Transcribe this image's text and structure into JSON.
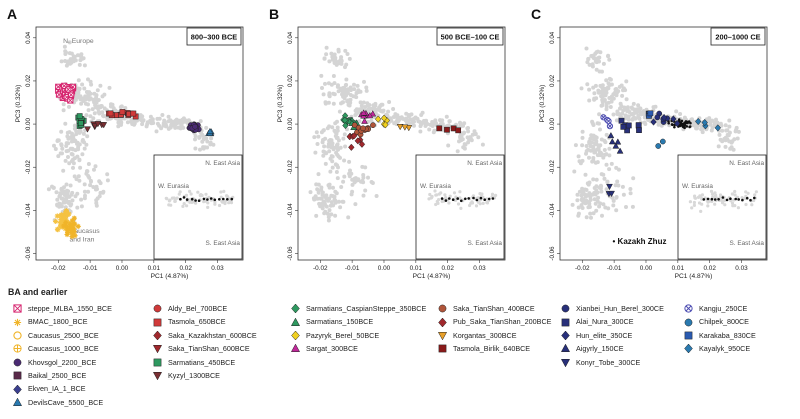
{
  "chart_data": [
    {
      "type": "scatter",
      "panel_letter": "A",
      "period_label": "800–300 BCE",
      "xlabel": "PC1 (4.87%)",
      "ylabel": "PC3 (0.32%)",
      "xlim": [
        -0.027,
        0.038
      ],
      "ylim": [
        -0.063,
        0.045
      ],
      "xticks": [
        -0.02,
        -0.01,
        0.0,
        0.01,
        0.02,
        0.03
      ],
      "xtick_labels": [
        "-0.02",
        "-0.01",
        "0.00",
        "0.01",
        "0.02",
        "0.03"
      ],
      "yticks": [
        0.04,
        0.02,
        0.0,
        -0.02,
        -0.04,
        -0.06
      ],
      "ytick_labels": [
        "0.04",
        "0.02",
        "0.00",
        "-0.02",
        "-0.04",
        "-0.06"
      ],
      "annotations": [
        {
          "text": "N. Europe",
          "x": -0.0185,
          "y": 0.0375
        },
        {
          "text": "Caucasus",
          "x": -0.0165,
          "y": -0.0505
        },
        {
          "text": "and Iran",
          "x": -0.0165,
          "y": -0.0545
        }
      ],
      "inset_annotations": [
        "N. East Asia",
        "W. Eurasia",
        "S. East Asia"
      ],
      "background_points": "grey reference cloud (present-day Eurasians)",
      "clusters": [
        {
          "name": "steppe_MLBA_1550_BCE",
          "cx": -0.0175,
          "cy": 0.015,
          "sx": 0.0022,
          "sy": 0.003,
          "n": 45
        },
        {
          "name": "BMAC_1800_BCE",
          "cx": -0.0185,
          "cy": -0.044,
          "sx": 0.002,
          "sy": 0.005,
          "n": 40
        },
        {
          "name": "Caucasus_2500_BCE",
          "cx": -0.016,
          "cy": -0.048,
          "sx": 0.002,
          "sy": 0.004,
          "n": 25
        },
        {
          "name": "Sarmatians_450BCE",
          "cx": -0.013,
          "cy": 0.0015,
          "sx": 0.0013,
          "sy": 0.003,
          "n": 14
        },
        {
          "name": "Kyzyl_1300BCE",
          "cx": -0.008,
          "cy": -0.001,
          "sx": 0.003,
          "sy": 0.0012,
          "n": 7
        },
        {
          "name": "Tasmola_650BCE",
          "cx": 0.0005,
          "cy": 0.0045,
          "sx": 0.005,
          "sy": 0.0008,
          "n": 12
        },
        {
          "name": "Khovsgol_2200_BCE",
          "cx": 0.0225,
          "cy": -0.0015,
          "sx": 0.0018,
          "sy": 0.002,
          "n": 18
        },
        {
          "name": "DevilsCave_5500_BCE",
          "cx": 0.0278,
          "cy": -0.004,
          "sx": 0.0006,
          "sy": 0.001,
          "n": 5
        }
      ]
    },
    {
      "type": "scatter",
      "panel_letter": "B",
      "period_label": "500 BCE–100 CE",
      "xlabel": "PC1 (4.87%)",
      "ylabel": "PC3 (0.32%)",
      "xlim": [
        -0.027,
        0.038
      ],
      "ylim": [
        -0.063,
        0.045
      ],
      "xticks": [
        -0.02,
        -0.01,
        0.0,
        0.01,
        0.02,
        0.03
      ],
      "xtick_labels": [
        "-0.02",
        "-0.01",
        "0.00",
        "0.01",
        "0.02",
        "0.03"
      ],
      "yticks": [
        0.04,
        0.02,
        0.0,
        -0.02,
        -0.04,
        -0.06
      ],
      "ytick_labels": [
        "0.04",
        "0.02",
        "0.00",
        "-0.02",
        "-0.04",
        "-0.06"
      ],
      "inset_annotations": [
        "N. East Asia",
        "W. Eurasia",
        "S. East Asia"
      ],
      "clusters": [
        {
          "name": "Sarmatians_CaspianSteppe_350BCE",
          "cx": -0.012,
          "cy": 0.002,
          "sx": 0.0015,
          "sy": 0.002,
          "n": 10
        },
        {
          "name": "Sarmatians_150BCE",
          "cx": -0.01,
          "cy": 0.0,
          "sx": 0.0015,
          "sy": 0.002,
          "n": 6
        },
        {
          "name": "Saka_TianShan_400BCE",
          "cx": -0.007,
          "cy": -0.003,
          "sx": 0.003,
          "sy": 0.004,
          "n": 12
        },
        {
          "name": "Pazyryk_Berel_50BCE",
          "cx": 0.0,
          "cy": 0.001,
          "sx": 0.002,
          "sy": 0.002,
          "n": 5
        },
        {
          "name": "Sargat_300BCE",
          "cx": -0.005,
          "cy": 0.004,
          "sx": 0.002,
          "sy": 0.002,
          "n": 8
        },
        {
          "name": "Pub_Saka_TianShan_200BCE",
          "cx": -0.009,
          "cy": -0.006,
          "sx": 0.003,
          "sy": 0.003,
          "n": 8
        },
        {
          "name": "Korgantas_300BCE",
          "cx": 0.008,
          "cy": -0.002,
          "sx": 0.003,
          "sy": 0.001,
          "n": 3
        },
        {
          "name": "Tasmola_Birlik_640BCE",
          "cx": 0.02,
          "cy": -0.002,
          "sx": 0.004,
          "sy": 0.0008,
          "n": 4
        }
      ]
    },
    {
      "type": "scatter",
      "panel_letter": "C",
      "period_label": "200–1000 CE",
      "xlabel": "PC1 (4.87%)",
      "ylabel": "PC3 (0.32%)",
      "xlim": [
        -0.027,
        0.038
      ],
      "ylim": [
        -0.063,
        0.045
      ],
      "xticks": [
        -0.02,
        -0.01,
        0.0,
        0.01,
        0.02,
        0.03
      ],
      "xtick_labels": [
        "-0.02",
        "-0.01",
        "0.00",
        "0.01",
        "0.02",
        "0.03"
      ],
      "yticks": [
        0.04,
        0.02,
        0.0,
        -0.02,
        -0.04,
        -0.06
      ],
      "ytick_labels": [
        "0.04",
        "0.02",
        "0.00",
        "-0.02",
        "-0.04",
        "-0.06"
      ],
      "annotations": [
        {
          "text": "• Kazakh Zhuz",
          "x": -0.0105,
          "y": -0.0555
        }
      ],
      "inset_annotations": [
        "N. East Asia",
        "W. Eurasia",
        "S. East Asia"
      ],
      "clusters": [
        {
          "name": "Kazakh_dots",
          "cx": 0.011,
          "cy": 0.0,
          "sx": 0.003,
          "sy": 0.002,
          "n": 40
        },
        {
          "name": "Xianbei_Hun_Berel_300CE",
          "cx": 0.006,
          "cy": 0.003,
          "sx": 0.004,
          "sy": 0.002,
          "n": 5
        },
        {
          "name": "Alai_Nura_300CE",
          "cx": -0.005,
          "cy": 0.0,
          "sx": 0.005,
          "sy": 0.004,
          "n": 8
        },
        {
          "name": "Hun_elite_350CE",
          "cx": 0.005,
          "cy": 0.001,
          "sx": 0.006,
          "sy": 0.003,
          "n": 4
        },
        {
          "name": "Aigyrly_150CE",
          "cx": -0.009,
          "cy": -0.008,
          "sx": 0.004,
          "sy": 0.003,
          "n": 5
        },
        {
          "name": "Konyr_Tobe_300CE",
          "cx": -0.012,
          "cy": -0.028,
          "sx": 0.003,
          "sy": 0.006,
          "n": 3
        },
        {
          "name": "Kangju_250CE",
          "cx": -0.013,
          "cy": 0.002,
          "sx": 0.002,
          "sy": 0.003,
          "n": 4
        },
        {
          "name": "Chilpek_800CE",
          "cx": 0.005,
          "cy": -0.009,
          "sx": 0.002,
          "sy": 0.002,
          "n": 2
        },
        {
          "name": "Karakaba_830CE",
          "cx": 0.001,
          "cy": 0.004,
          "sx": 0.002,
          "sy": 0.002,
          "n": 4
        },
        {
          "name": "Kayalyk_950CE",
          "cx": 0.02,
          "cy": 0.0,
          "sx": 0.004,
          "sy": 0.002,
          "n": 4
        }
      ]
    }
  ],
  "legend": {
    "heading": "BA and earlier",
    "columns": [
      [
        {
          "label": "steppe_MLBA_1550_BCE",
          "shape": "square-x",
          "color": "#d6246e"
        },
        {
          "label": "BMAC_1800_BCE",
          "shape": "asterisk",
          "color": "#f0b429"
        },
        {
          "label": "Caucasus_2500_BCE",
          "shape": "circle-open",
          "color": "#f0b429"
        },
        {
          "label": "Caucasus_1000_BCE",
          "shape": "circle-plus",
          "color": "#f0b429"
        },
        {
          "label": "Khovsgol_2200_BCE",
          "shape": "circle",
          "color": "#4a2a73"
        },
        {
          "label": "Baikal_2500_BCE",
          "shape": "square",
          "color": "#5a2a4a"
        },
        {
          "label": "Ekven_IA_1_BCE",
          "shape": "diamond",
          "color": "#3a3f8f"
        },
        {
          "label": "DevilsCave_5500_BCE",
          "shape": "triangle",
          "color": "#2a7ab0"
        }
      ],
      [
        {
          "label": "Aldy_Bel_700BCE",
          "shape": "circle",
          "color": "#d03a3a"
        },
        {
          "label": "Tasmola_650BCE",
          "shape": "square",
          "color": "#d03a3a"
        },
        {
          "label": "Saka_Kazakhstan_600BCE",
          "shape": "diamond",
          "color": "#a0282d"
        },
        {
          "label": "Saka_TianShan_600BCE",
          "shape": "triangle-down",
          "color": "#a0282d"
        },
        {
          "label": "Sarmatians_450BCE",
          "shape": "square",
          "color": "#2e9960"
        },
        {
          "label": "Kyzyl_1300BCE",
          "shape": "triangle-down",
          "color": "#7a2f33"
        }
      ],
      [
        {
          "label": "Sarmatians_CaspianSteppe_350BCE",
          "shape": "diamond",
          "color": "#2e9960"
        },
        {
          "label": "Sarmatians_150BCE",
          "shape": "triangle",
          "color": "#2e9960"
        },
        {
          "label": "Pazyryk_Berel_50BCE",
          "shape": "diamond",
          "color": "#f0d020"
        },
        {
          "label": "Sargat_300BCE",
          "shape": "triangle",
          "color": "#c0289a"
        }
      ],
      [
        {
          "label": "Saka_TianShan_400BCE",
          "shape": "circle",
          "color": "#b0553a"
        },
        {
          "label": "Pub_Saka_TianShan_200BCE",
          "shape": "diamond",
          "color": "#a0282d"
        },
        {
          "label": "Korgantas_300BCE",
          "shape": "triangle-down",
          "color": "#e8a02a"
        },
        {
          "label": "Tasmola_Birlik_640BCE",
          "shape": "square",
          "color": "#8a1a1a"
        }
      ],
      [
        {
          "label": "Xianbei_Hun_Berel_300CE",
          "shape": "circle",
          "color": "#28307a"
        },
        {
          "label": "Alai_Nura_300CE",
          "shape": "square",
          "color": "#28307a"
        },
        {
          "label": "Hun_elite_350CE",
          "shape": "diamond",
          "color": "#28307a"
        },
        {
          "label": "Aigyrly_150CE",
          "shape": "triangle",
          "color": "#28307a"
        },
        {
          "label": "Konyr_Tobe_300CE",
          "shape": "triangle-down",
          "color": "#28307a"
        }
      ],
      [
        {
          "label": "Kangju_250CE",
          "shape": "circle-x",
          "color": "#4a4ab0"
        },
        {
          "label": "Chilpek_800CE",
          "shape": "circle",
          "color": "#2a7ab0"
        },
        {
          "label": "Karakaba_830CE",
          "shape": "square",
          "color": "#2a5ab0"
        },
        {
          "label": "Kayalyk_950CE",
          "shape": "diamond",
          "color": "#2a7ab0"
        }
      ]
    ]
  }
}
